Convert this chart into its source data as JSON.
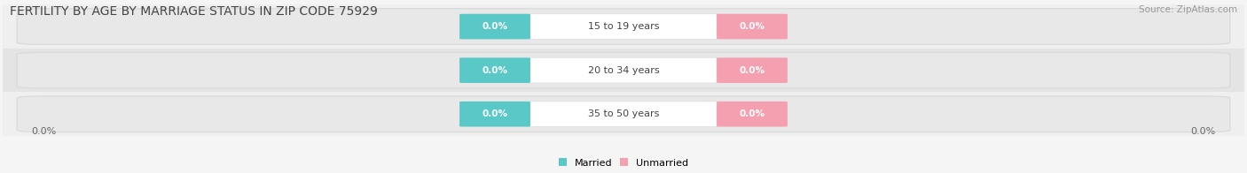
{
  "title": "FERTILITY BY AGE BY MARRIAGE STATUS IN ZIP CODE 75929",
  "source": "Source: ZipAtlas.com",
  "categories": [
    "15 to 19 years",
    "20 to 34 years",
    "35 to 50 years"
  ],
  "married_values": [
    0.0,
    0.0,
    0.0
  ],
  "unmarried_values": [
    0.0,
    0.0,
    0.0
  ],
  "married_color": "#5bc8c8",
  "unmarried_color": "#f4a0b0",
  "row_bg_colors": [
    "#efefef",
    "#e4e4e4",
    "#efefef"
  ],
  "pill_color": "#e0e0e0",
  "pill_edge_color": "#d0d0d0",
  "center_label_bg": "#ffffff",
  "title_fontsize": 10,
  "source_fontsize": 7.5,
  "label_fontsize": 8,
  "value_fontsize": 7.5,
  "legend_married": "Married",
  "legend_unmarried": "Unmarried",
  "axis_label_left": "0.0%",
  "axis_label_right": "0.0%",
  "bg_color": "#f5f5f5"
}
